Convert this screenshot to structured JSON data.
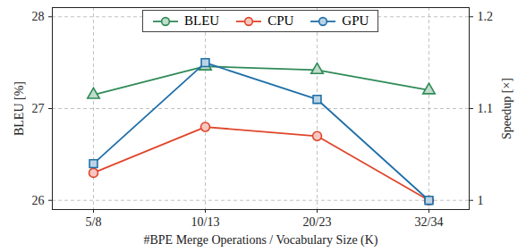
{
  "chart_data": {
    "type": "line",
    "xlabel": "#BPE Merge Operations / Vocabulary Size (K)",
    "ylabel": "BLEU [%]",
    "y2label": "Speedup [×]",
    "categories": [
      "5/8",
      "10/13",
      "20/23",
      "32/34"
    ],
    "series": [
      {
        "name": "BLEU",
        "color": "#2e8b57",
        "marker": "triangle",
        "line_style": "solid",
        "values": [
          27.15,
          27.46,
          27.42,
          27.2
        ]
      },
      {
        "name": "CPU",
        "color": "#e0452b",
        "marker": "circle",
        "line_style": "solid",
        "axis": "y2",
        "values": [
          1.03,
          1.08,
          1.07,
          1.0
        ]
      },
      {
        "name": "GPU",
        "color": "#1f6fa8",
        "marker": "square",
        "line_style": "solid",
        "axis": "y2",
        "values": [
          1.04,
          1.15,
          1.11,
          1.0
        ]
      }
    ],
    "ylim": [
      25.9,
      28.1
    ],
    "yticks": [
      26,
      27,
      28
    ],
    "y2lim": [
      0.99,
      1.21
    ],
    "y2ticks": [
      1,
      1.1,
      1.2
    ],
    "grid": true,
    "legend": "top"
  }
}
